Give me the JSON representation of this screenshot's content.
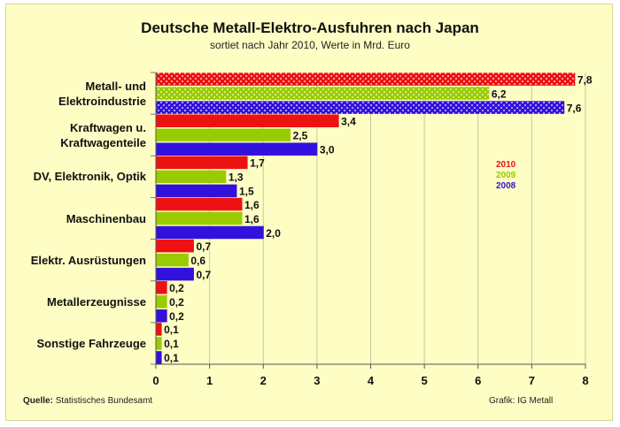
{
  "chart_data": {
    "type": "bar",
    "orientation": "horizontal",
    "title": "Deutsche Metall-Elektro-Ausfuhren nach Japan",
    "subtitle": "sortiet nach Jahr 2010, Werte in Mrd. Euro",
    "categories": [
      [
        "Metall- und",
        "Elektroindustrie"
      ],
      [
        "Kraftwagen u.",
        "Kraftwagenteile"
      ],
      [
        "DV, Elektronik, Optik"
      ],
      [
        "Maschinenbau"
      ],
      [
        "Elektr. Ausrüstungen"
      ],
      [
        "Metallerzeugnisse"
      ],
      [
        "Sonstige Fahrzeuge"
      ]
    ],
    "series": [
      {
        "name": "2010",
        "color": "#ee1111",
        "values": [
          7.8,
          3.4,
          1.7,
          1.6,
          0.7,
          0.2,
          0.1
        ],
        "labels": [
          "7,8",
          "3,4",
          "1,7",
          "1,6",
          "0,7",
          "0,2",
          "0,1"
        ]
      },
      {
        "name": "2009",
        "color": "#99cc00",
        "values": [
          6.2,
          2.5,
          1.3,
          1.6,
          0.6,
          0.2,
          0.1
        ],
        "labels": [
          "6,2",
          "2,5",
          "1,3",
          "1,6",
          "0,6",
          "0,2",
          "0,1"
        ]
      },
      {
        "name": "2008",
        "color": "#3311dd",
        "values": [
          7.6,
          3.0,
          1.5,
          2.0,
          0.7,
          0.2,
          0.1
        ],
        "labels": [
          "7,6",
          "3,0",
          "1,5",
          "2,0",
          "0,7",
          "0,2",
          "0,1"
        ]
      }
    ],
    "xlim": [
      0,
      8
    ],
    "xticks": [
      "0",
      "1",
      "2",
      "3",
      "4",
      "5",
      "6",
      "7",
      "8"
    ],
    "legend_position": "right",
    "grid": true
  },
  "footer": {
    "source_label": "Quelle:",
    "source_text": "Statistisches Bundesamt",
    "credit": "Grafik: IG Metall"
  }
}
